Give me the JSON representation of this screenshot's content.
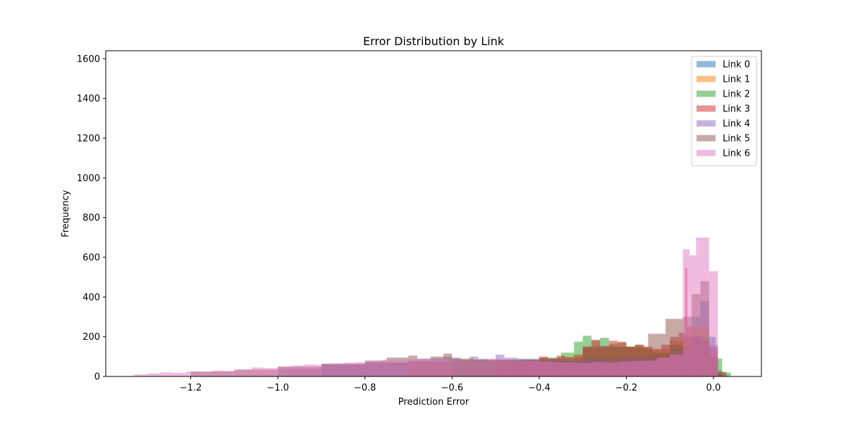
{
  "chart_data": {
    "type": "bar",
    "title": "Error Distribution by Link",
    "xlabel": "Prediction Error",
    "ylabel": "Frequency",
    "xlim": [
      -1.395,
      0.11
    ],
    "ylim": [
      0,
      1640
    ],
    "xticks": [
      -1.2,
      -1.0,
      -0.8,
      -0.6,
      -0.4,
      -0.2,
      0.0
    ],
    "xtick_labels": [
      "−1.2",
      "−1.0",
      "−0.8",
      "−0.6",
      "−0.4",
      "−0.2",
      "0.0"
    ],
    "yticks": [
      0,
      200,
      400,
      600,
      800,
      1000,
      1200,
      1400,
      1600
    ],
    "ytick_labels": [
      "0",
      "200",
      "400",
      "600",
      "800",
      "1000",
      "1200",
      "1400",
      "1600"
    ],
    "grid": false,
    "legend_position": "top-right",
    "bar_opacity": 0.5,
    "series": [
      {
        "name": "Link 0",
        "color": "#1f77b4",
        "bins": [
          [
            -0.9,
            -0.8,
            60
          ],
          [
            -0.8,
            -0.7,
            70
          ],
          [
            -0.7,
            -0.6,
            75
          ],
          [
            -0.6,
            -0.5,
            80
          ],
          [
            -0.5,
            -0.4,
            85
          ],
          [
            -0.4,
            -0.3,
            90
          ],
          [
            -0.3,
            -0.2,
            90
          ],
          [
            -0.2,
            -0.15,
            95
          ],
          [
            -0.15,
            -0.1,
            110
          ],
          [
            -0.1,
            -0.07,
            140
          ],
          [
            -0.07,
            -0.05,
            200
          ],
          [
            -0.05,
            -0.03,
            300
          ],
          [
            -0.03,
            -0.01,
            380
          ],
          [
            -0.01,
            0.005,
            200
          ],
          [
            0.005,
            0.02,
            30
          ]
        ]
      },
      {
        "name": "Link 1",
        "color": "#ff7f0e",
        "bins": [
          [
            -0.7,
            -0.6,
            70
          ],
          [
            -0.6,
            -0.5,
            80
          ],
          [
            -0.5,
            -0.4,
            85
          ],
          [
            -0.4,
            -0.35,
            90
          ],
          [
            -0.35,
            -0.3,
            100
          ],
          [
            -0.3,
            -0.25,
            140
          ],
          [
            -0.25,
            -0.2,
            150
          ],
          [
            -0.2,
            -0.15,
            150
          ],
          [
            -0.15,
            -0.1,
            140
          ],
          [
            -0.1,
            -0.05,
            180
          ],
          [
            -0.05,
            -0.01,
            250
          ],
          [
            -0.01,
            0.01,
            120
          ],
          [
            0.01,
            0.03,
            25
          ]
        ]
      },
      {
        "name": "Link 2",
        "color": "#2ca02c",
        "bins": [
          [
            -0.6,
            -0.5,
            75
          ],
          [
            -0.5,
            -0.4,
            85
          ],
          [
            -0.4,
            -0.35,
            95
          ],
          [
            -0.35,
            -0.32,
            120
          ],
          [
            -0.32,
            -0.3,
            175
          ],
          [
            -0.3,
            -0.28,
            205
          ],
          [
            -0.28,
            -0.26,
            180
          ],
          [
            -0.26,
            -0.24,
            195
          ],
          [
            -0.24,
            -0.22,
            165
          ],
          [
            -0.22,
            -0.2,
            170
          ],
          [
            -0.2,
            -0.18,
            150
          ],
          [
            -0.18,
            -0.16,
            160
          ],
          [
            -0.16,
            -0.14,
            140
          ],
          [
            -0.14,
            -0.1,
            120
          ],
          [
            -0.1,
            -0.05,
            160
          ],
          [
            -0.05,
            -0.01,
            200
          ],
          [
            -0.01,
            0.02,
            90
          ],
          [
            0.02,
            0.04,
            20
          ]
        ]
      },
      {
        "name": "Link 3",
        "color": "#d62728",
        "bins": [
          [
            -0.5,
            -0.4,
            80
          ],
          [
            -0.4,
            -0.38,
            100
          ],
          [
            -0.38,
            -0.36,
            90
          ],
          [
            -0.36,
            -0.34,
            105
          ],
          [
            -0.34,
            -0.32,
            95
          ],
          [
            -0.32,
            -0.3,
            110
          ],
          [
            -0.3,
            -0.28,
            150
          ],
          [
            -0.28,
            -0.26,
            185
          ],
          [
            -0.26,
            -0.24,
            150
          ],
          [
            -0.24,
            -0.22,
            180
          ],
          [
            -0.22,
            -0.2,
            175
          ],
          [
            -0.2,
            -0.18,
            150
          ],
          [
            -0.18,
            -0.16,
            160
          ],
          [
            -0.16,
            -0.14,
            150
          ],
          [
            -0.14,
            -0.12,
            135
          ],
          [
            -0.12,
            -0.1,
            160
          ],
          [
            -0.1,
            -0.08,
            200
          ],
          [
            -0.08,
            -0.065,
            220
          ],
          [
            -0.065,
            -0.06,
            545
          ],
          [
            -0.06,
            -0.05,
            250
          ],
          [
            -0.05,
            -0.03,
            200
          ],
          [
            -0.03,
            -0.01,
            180
          ],
          [
            -0.01,
            0.01,
            100
          ],
          [
            0.01,
            0.02,
            20
          ]
        ]
      },
      {
        "name": "Link 4",
        "color": "#9467bd",
        "bins": [
          [
            -1.0,
            -0.9,
            40
          ],
          [
            -0.9,
            -0.8,
            60
          ],
          [
            -0.8,
            -0.7,
            70
          ],
          [
            -0.7,
            -0.65,
            80
          ],
          [
            -0.65,
            -0.62,
            90
          ],
          [
            -0.62,
            -0.6,
            100
          ],
          [
            -0.6,
            -0.58,
            95
          ],
          [
            -0.58,
            -0.56,
            85
          ],
          [
            -0.56,
            -0.54,
            100
          ],
          [
            -0.54,
            -0.52,
            90
          ],
          [
            -0.52,
            -0.5,
            85
          ],
          [
            -0.5,
            -0.48,
            110
          ],
          [
            -0.48,
            -0.45,
            95
          ],
          [
            -0.45,
            -0.4,
            90
          ],
          [
            -0.4,
            -0.3,
            85
          ],
          [
            -0.3,
            -0.2,
            90
          ],
          [
            -0.2,
            -0.1,
            95
          ],
          [
            -0.1,
            -0.05,
            130
          ],
          [
            -0.05,
            -0.02,
            200
          ],
          [
            -0.02,
            0.01,
            160
          ],
          [
            0.01,
            0.02,
            20
          ]
        ]
      },
      {
        "name": "Link 5",
        "color": "#8c564b",
        "bins": [
          [
            -1.2,
            -1.1,
            25
          ],
          [
            -1.1,
            -1.0,
            35
          ],
          [
            -1.0,
            -0.9,
            50
          ],
          [
            -0.9,
            -0.8,
            65
          ],
          [
            -0.8,
            -0.75,
            80
          ],
          [
            -0.75,
            -0.7,
            95
          ],
          [
            -0.7,
            -0.68,
            105
          ],
          [
            -0.68,
            -0.65,
            90
          ],
          [
            -0.65,
            -0.62,
            100
          ],
          [
            -0.62,
            -0.6,
            115
          ],
          [
            -0.6,
            -0.55,
            90
          ],
          [
            -0.55,
            -0.5,
            85
          ],
          [
            -0.5,
            -0.4,
            80
          ],
          [
            -0.4,
            -0.3,
            80
          ],
          [
            -0.3,
            -0.27,
            150
          ],
          [
            -0.27,
            -0.23,
            155
          ],
          [
            -0.23,
            -0.19,
            150
          ],
          [
            -0.19,
            -0.15,
            145
          ],
          [
            -0.15,
            -0.11,
            215
          ],
          [
            -0.11,
            -0.07,
            290
          ],
          [
            -0.07,
            -0.05,
            300
          ],
          [
            -0.05,
            -0.03,
            415
          ],
          [
            -0.03,
            -0.01,
            480
          ],
          [
            -0.01,
            0.01,
            150
          ],
          [
            0.01,
            0.03,
            20
          ]
        ]
      },
      {
        "name": "Link 6",
        "color": "#e377c2",
        "bins": [
          [
            -1.33,
            -1.3,
            10
          ],
          [
            -1.3,
            -1.27,
            15
          ],
          [
            -1.27,
            -1.24,
            20
          ],
          [
            -1.24,
            -1.21,
            18
          ],
          [
            -1.21,
            -1.18,
            25
          ],
          [
            -1.18,
            -1.15,
            22
          ],
          [
            -1.15,
            -1.12,
            30
          ],
          [
            -1.12,
            -1.09,
            28
          ],
          [
            -1.09,
            -1.06,
            35
          ],
          [
            -1.06,
            -1.03,
            45
          ],
          [
            -1.03,
            -1.0,
            42
          ],
          [
            -1.0,
            -0.97,
            50
          ],
          [
            -0.97,
            -0.94,
            55
          ],
          [
            -0.94,
            -0.91,
            60
          ],
          [
            -0.91,
            -0.88,
            58
          ],
          [
            -0.88,
            -0.85,
            65
          ],
          [
            -0.85,
            -0.82,
            70
          ],
          [
            -0.82,
            -0.79,
            72
          ],
          [
            -0.79,
            -0.76,
            80
          ],
          [
            -0.76,
            -0.73,
            85
          ],
          [
            -0.73,
            -0.7,
            82
          ],
          [
            -0.7,
            -0.67,
            88
          ],
          [
            -0.67,
            -0.64,
            90
          ],
          [
            -0.64,
            -0.61,
            85
          ],
          [
            -0.61,
            -0.58,
            80
          ],
          [
            -0.58,
            -0.55,
            78
          ],
          [
            -0.55,
            -0.52,
            75
          ],
          [
            -0.52,
            -0.49,
            90
          ],
          [
            -0.49,
            -0.46,
            85
          ],
          [
            -0.46,
            -0.43,
            80
          ],
          [
            -0.43,
            -0.4,
            78
          ],
          [
            -0.4,
            -0.37,
            75
          ],
          [
            -0.37,
            -0.34,
            72
          ],
          [
            -0.34,
            -0.31,
            70
          ],
          [
            -0.31,
            -0.28,
            68
          ],
          [
            -0.28,
            -0.25,
            72
          ],
          [
            -0.25,
            -0.22,
            70
          ],
          [
            -0.22,
            -0.19,
            75
          ],
          [
            -0.19,
            -0.16,
            78
          ],
          [
            -0.16,
            -0.13,
            80
          ],
          [
            -0.13,
            -0.1,
            95
          ],
          [
            -0.1,
            -0.07,
            110
          ],
          [
            -0.07,
            -0.055,
            640
          ],
          [
            -0.055,
            -0.04,
            610
          ],
          [
            -0.04,
            -0.01,
            700
          ],
          [
            -0.01,
            0.01,
            530
          ]
        ]
      }
    ]
  }
}
